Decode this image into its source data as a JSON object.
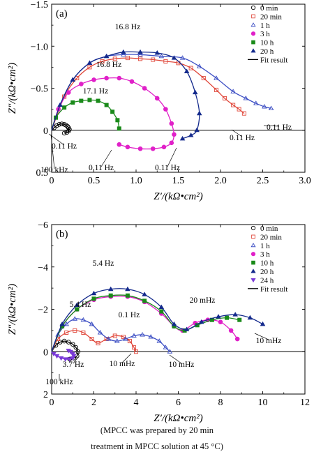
{
  "chart_data": [
    {
      "type": "scatter",
      "panel_label": "(a)",
      "xlabel": "Z′/(kΩ•cm²)",
      "ylabel": "Z″/(kΩ•cm²)",
      "xlim": [
        0,
        3.0
      ],
      "ylim": [
        0.5,
        -1.5
      ],
      "xticks": [
        0,
        0.5,
        1.0,
        1.5,
        2.0,
        2.5,
        3.0
      ],
      "xtick_labels": [
        "0",
        "0.5",
        "1.0",
        "1.5",
        "2.0",
        "2.5",
        "3.0"
      ],
      "yticks": [
        -1.5,
        -1.0,
        -0.5,
        0,
        0.5
      ],
      "ytick_labels": [
        "−1.5",
        "−1.0",
        "−0.5",
        "0",
        "0.5"
      ],
      "legend_position": "top-right",
      "legend_fit_label": "Fit result",
      "series": [
        {
          "name": "0 min",
          "marker": "circle-open",
          "color": "#000000",
          "fit": true,
          "x": [
            0.03,
            0.06,
            0.09,
            0.12,
            0.15,
            0.17,
            0.19,
            0.2,
            0.21,
            0.2,
            0.18,
            0.15
          ],
          "y": [
            -0.03,
            -0.055,
            -0.07,
            -0.075,
            -0.07,
            -0.06,
            -0.045,
            -0.03,
            -0.01,
            0.01,
            0.025,
            0.035
          ]
        },
        {
          "name": "20 min",
          "marker": "square-open",
          "color": "#e0473a",
          "fit": true,
          "x": [
            0.15,
            0.3,
            0.45,
            0.6,
            0.75,
            0.9,
            1.05,
            1.2,
            1.35,
            1.5,
            1.65,
            1.8,
            1.95,
            2.05,
            2.15,
            2.22,
            2.28
          ],
          "y": [
            -0.4,
            -0.62,
            -0.75,
            -0.82,
            -0.85,
            -0.86,
            -0.85,
            -0.84,
            -0.82,
            -0.8,
            -0.74,
            -0.62,
            -0.48,
            -0.38,
            -0.3,
            -0.25,
            -0.2
          ]
        },
        {
          "name": "1 h",
          "marker": "triangle-open",
          "color": "#3d4fc4",
          "fit": true,
          "x": [
            0.1,
            0.25,
            0.45,
            0.65,
            0.85,
            1.05,
            1.3,
            1.55,
            1.75,
            1.95,
            2.15,
            2.3,
            2.42,
            2.52,
            2.6
          ],
          "y": [
            -0.3,
            -0.6,
            -0.8,
            -0.88,
            -0.9,
            -0.9,
            -0.88,
            -0.86,
            -0.76,
            -0.62,
            -0.46,
            -0.38,
            -0.32,
            -0.28,
            -0.26
          ]
        },
        {
          "name": "3 h",
          "marker": "circle-filled",
          "color": "#e020c8",
          "fit": true,
          "x": [
            0.08,
            0.2,
            0.35,
            0.5,
            0.65,
            0.8,
            0.95,
            1.1,
            1.25,
            1.35,
            1.42,
            1.45,
            1.42,
            1.33,
            1.2,
            1.05,
            0.9,
            0.8
          ],
          "y": [
            -0.25,
            -0.45,
            -0.55,
            -0.6,
            -0.62,
            -0.62,
            -0.58,
            -0.5,
            -0.38,
            -0.25,
            -0.08,
            0.05,
            0.15,
            0.2,
            0.22,
            0.22,
            0.2,
            0.17
          ]
        },
        {
          "name": "10 h",
          "marker": "square-filled",
          "color": "#1a8a1a",
          "fit": true,
          "x": [
            0.05,
            0.15,
            0.25,
            0.35,
            0.45,
            0.55,
            0.65,
            0.72,
            0.78,
            0.8
          ],
          "y": [
            -0.15,
            -0.27,
            -0.33,
            -0.35,
            -0.36,
            -0.35,
            -0.3,
            -0.22,
            -0.12,
            -0.02
          ]
        },
        {
          "name": "20 h",
          "marker": "triangle-filled",
          "color": "#142a8c",
          "fit": true,
          "x": [
            0.1,
            0.25,
            0.45,
            0.65,
            0.85,
            1.05,
            1.25,
            1.45,
            1.6,
            1.7,
            1.75,
            1.72,
            1.65,
            1.55
          ],
          "y": [
            -0.3,
            -0.6,
            -0.8,
            -0.88,
            -0.93,
            -0.93,
            -0.92,
            -0.86,
            -0.7,
            -0.45,
            -0.2,
            0.0,
            0.06,
            0.1
          ]
        }
      ],
      "annotations": [
        "16.8 Hz",
        "16.8 Hz",
        "17.1 Hz",
        "0.11 Hz",
        "0.11 Hz",
        "100 kHz",
        "0.11 Hz",
        "0.11 Hz",
        "0.11 Hz",
        "0.11 Hz"
      ]
    },
    {
      "type": "scatter",
      "panel_label": "(b)",
      "xlabel": "Z′/(kΩ•cm²)",
      "ylabel": "Z″/(kΩ•cm²)",
      "xlim": [
        0,
        12
      ],
      "ylim": [
        2,
        -6
      ],
      "xticks": [
        0,
        2,
        4,
        6,
        8,
        10,
        12
      ],
      "xtick_labels": [
        "0",
        "2",
        "4",
        "6",
        "8",
        "10",
        "12"
      ],
      "yticks": [
        -6,
        -4,
        -2,
        0,
        2
      ],
      "ytick_labels": [
        "−6",
        "−4",
        "−2",
        "0",
        "2"
      ],
      "legend_position": "top-right",
      "legend_fit_label": "Fit result",
      "series": [
        {
          "name": "0 min",
          "marker": "circle-open",
          "color": "#000000",
          "fit": true,
          "x": [
            0.2,
            0.4,
            0.6,
            0.8,
            1.0,
            1.15,
            1.25,
            1.2,
            1.05,
            0.85
          ],
          "y": [
            -0.3,
            -0.45,
            -0.5,
            -0.45,
            -0.35,
            -0.2,
            0.0,
            0.2,
            0.3,
            0.35
          ]
        },
        {
          "name": "20 min",
          "marker": "square-open",
          "color": "#e0473a",
          "fit": true,
          "x": [
            0.3,
            0.7,
            1.1,
            1.5,
            1.9,
            2.2,
            2.6,
            3.0,
            3.4,
            3.7,
            3.9,
            4.0
          ],
          "y": [
            -0.6,
            -0.9,
            -1.0,
            -0.9,
            -0.6,
            -0.4,
            -0.6,
            -0.75,
            -0.7,
            -0.5,
            -0.2,
            0.0
          ]
        },
        {
          "name": "1 h",
          "marker": "triangle-open",
          "color": "#3d4fc4",
          "fit": true,
          "x": [
            0.3,
            0.7,
            1.1,
            1.5,
            1.9,
            2.3,
            2.7,
            3.1,
            3.5,
            3.9,
            4.3,
            4.7,
            5.1,
            5.4,
            5.6
          ],
          "y": [
            -0.8,
            -1.3,
            -1.55,
            -1.5,
            -1.3,
            -0.9,
            -0.6,
            -0.5,
            -0.6,
            -0.75,
            -0.8,
            -0.7,
            -0.5,
            -0.2,
            0.0
          ]
        },
        {
          "name": "3 h",
          "marker": "circle-filled",
          "color": "#e020c8",
          "fit": true,
          "x": [
            0.5,
            1.2,
            2.0,
            2.8,
            3.6,
            4.4,
            5.2,
            5.8,
            6.2,
            6.8,
            7.4,
            8.0,
            8.5,
            8.8
          ],
          "y": [
            -1.2,
            -2.0,
            -2.45,
            -2.6,
            -2.6,
            -2.35,
            -1.8,
            -1.2,
            -1.0,
            -1.35,
            -1.5,
            -1.4,
            -1.0,
            -0.6
          ]
        },
        {
          "name": "10 h",
          "marker": "square-filled",
          "color": "#1a8a1a",
          "fit": true,
          "x": [
            0.5,
            1.2,
            2.0,
            2.8,
            3.6,
            4.4,
            5.2,
            5.8,
            6.3,
            6.9,
            7.6,
            8.3,
            8.9
          ],
          "y": [
            -1.2,
            -2.0,
            -2.5,
            -2.65,
            -2.65,
            -2.4,
            -1.9,
            -1.2,
            -1.0,
            -1.25,
            -1.5,
            -1.6,
            -1.5
          ]
        },
        {
          "name": "20 h",
          "marker": "triangle-filled",
          "color": "#142a8c",
          "fit": true,
          "x": [
            0.5,
            1.2,
            2.0,
            2.8,
            3.6,
            4.4,
            5.2,
            5.8,
            6.4,
            7.1,
            7.9,
            8.7,
            9.4,
            10.0
          ],
          "y": [
            -1.3,
            -2.2,
            -2.75,
            -2.95,
            -2.95,
            -2.7,
            -2.1,
            -1.3,
            -1.05,
            -1.4,
            -1.65,
            -1.75,
            -1.6,
            -1.3
          ]
        },
        {
          "name": "24 h",
          "marker": "triangle-down-filled",
          "color": "#7a3ad8",
          "fit": true,
          "x": [
            0.1,
            0.25,
            0.45,
            0.65,
            0.85,
            1.0,
            1.05,
            1.0,
            0.9,
            0.8
          ],
          "y": [
            0.1,
            0.2,
            0.3,
            0.35,
            0.35,
            0.3,
            0.2,
            0.1,
            0.0,
            -0.05
          ]
        }
      ],
      "annotations": [
        "5.4 Hz",
        "5.4 Hz",
        "0.1 Hz",
        "20 mHz",
        "10 mHz",
        "3.7 Hz",
        "10 mHz",
        "10 mHz",
        "100 kHz"
      ]
    }
  ],
  "caption_line1": "(MPCC   was   prepared   by   20   min",
  "caption_line2": "treatment in MPCC solution at 45 °C)"
}
